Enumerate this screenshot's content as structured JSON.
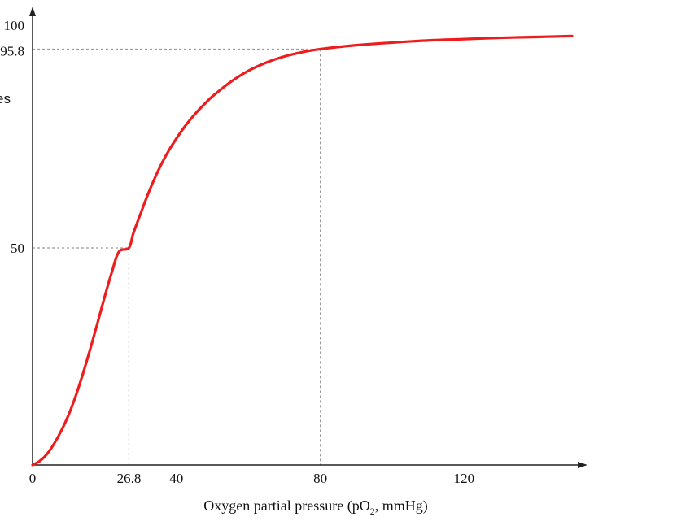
{
  "chart_data": {
    "type": "line",
    "title": "",
    "xlabel_main": "Oxygen partial pressure (pO",
    "xlabel_sub": "2",
    "xlabel_tail": ", mmHg)",
    "ylabel_fragment": "es",
    "xlim": [
      0,
      150
    ],
    "ylim": [
      0,
      100
    ],
    "x_ticks": [
      {
        "value": 0,
        "label": "0"
      },
      {
        "value": 26.8,
        "label": "26.8"
      },
      {
        "value": 40,
        "label": "40"
      },
      {
        "value": 80,
        "label": "80"
      },
      {
        "value": 120,
        "label": "120"
      }
    ],
    "y_ticks": [
      {
        "value": 50,
        "label": "50"
      },
      {
        "value": 95.8,
        "label": "95.8"
      },
      {
        "value": 100,
        "label": "100"
      }
    ],
    "reference_points": [
      {
        "x": 26.8,
        "y": 50
      },
      {
        "x": 80,
        "y": 95.8
      }
    ],
    "series": [
      {
        "color": "#ee1c1c",
        "x": [
          0,
          2,
          4,
          6,
          8,
          10,
          12,
          14,
          16,
          18,
          20,
          22,
          24,
          26.8,
          28,
          30,
          32,
          34,
          36,
          38,
          40,
          42,
          44,
          46,
          48,
          50,
          55,
          60,
          65,
          70,
          75,
          80,
          90,
          100,
          110,
          120,
          130,
          140,
          150
        ],
        "y": [
          0,
          0.9,
          2.5,
          4.9,
          7.9,
          11.5,
          15.9,
          21.0,
          26.6,
          32.5,
          38.6,
          44.3,
          49.1,
          50,
          53.3,
          57.8,
          62.2,
          66.1,
          69.6,
          72.6,
          75.2,
          77.6,
          79.7,
          81.6,
          83.3,
          84.9,
          88.2,
          90.8,
          92.7,
          94.1,
          95.1,
          95.8,
          96.7,
          97.3,
          97.8,
          98.1,
          98.4,
          98.6,
          98.8
        ]
      }
    ],
    "grid": false,
    "legend": "none"
  }
}
